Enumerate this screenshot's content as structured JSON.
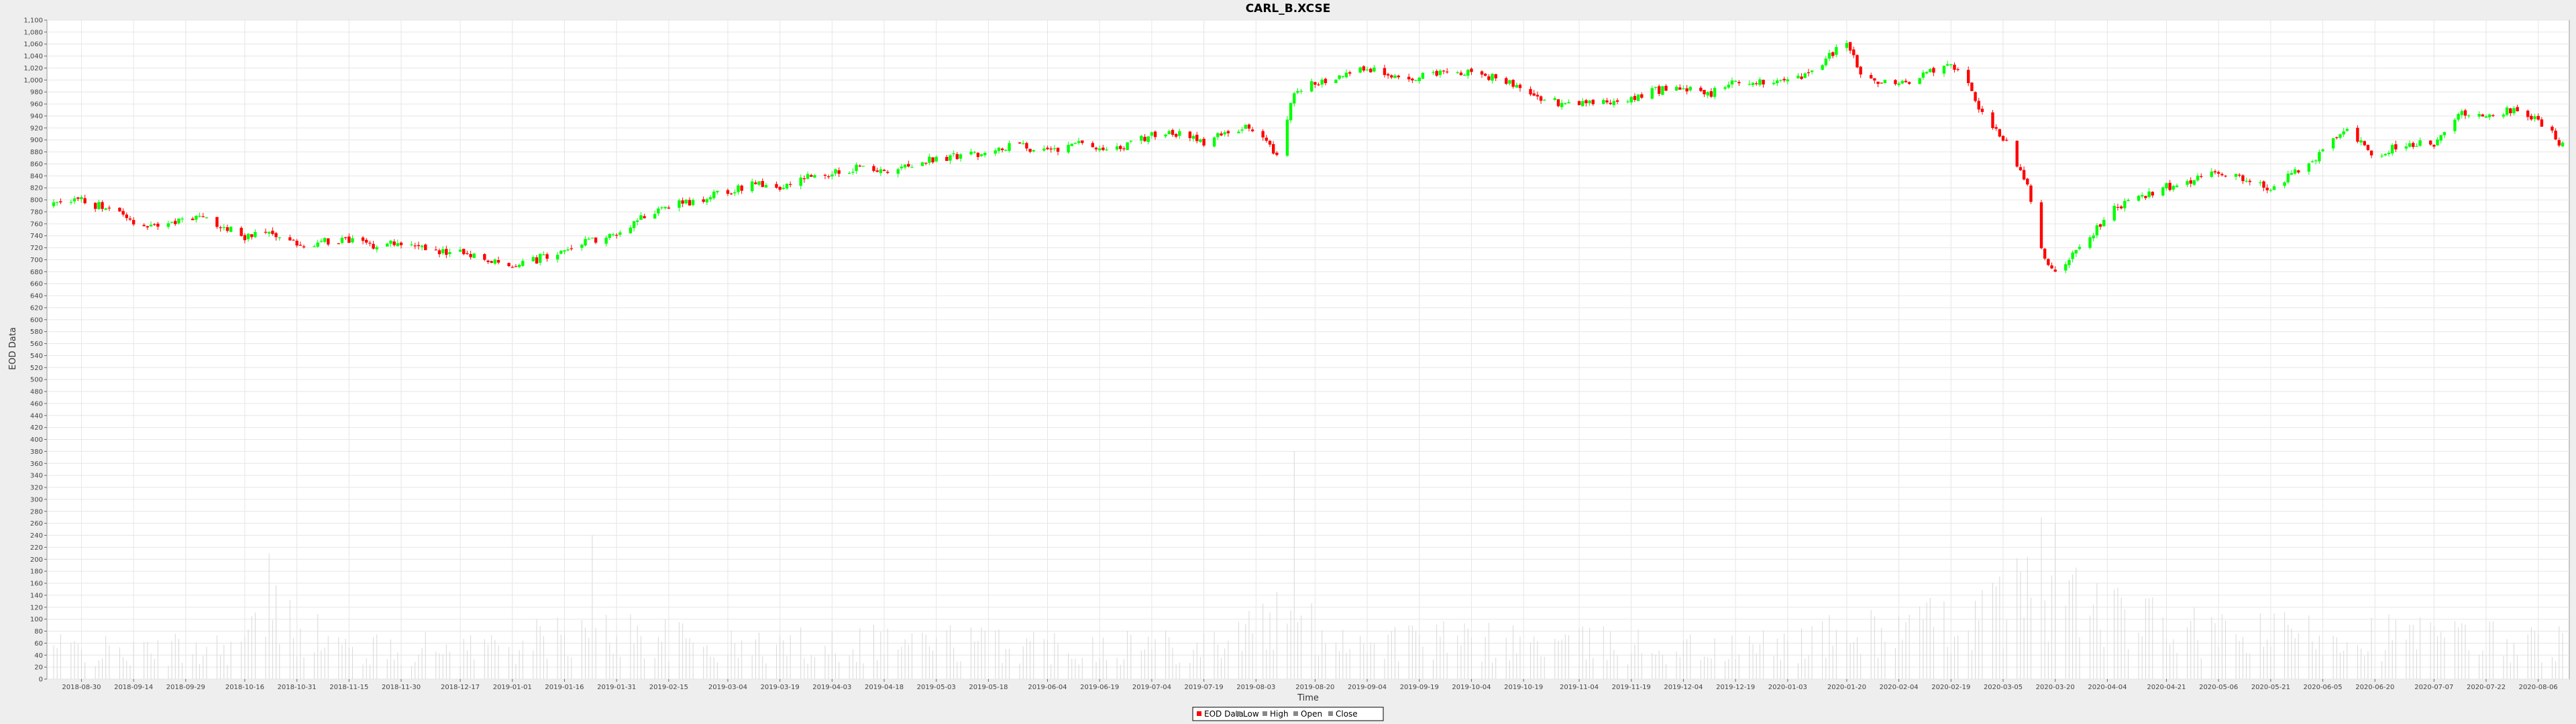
{
  "chart_data": {
    "type": "candlestick",
    "title": "CARL_B.XCSE",
    "xlabel": "Time",
    "ylabel": "EOD Data",
    "ylim": [
      0,
      1100
    ],
    "y_tick_step": 20,
    "grid": true,
    "legend_placement": "bottom-center",
    "x_tick_labels": [
      "2018-08-30",
      "2018-09-14",
      "2018-09-29",
      "2018-10-16",
      "2018-10-31",
      "2018-11-15",
      "2018-11-30",
      "2018-12-17",
      "2019-01-01",
      "2019-01-16",
      "2019-01-31",
      "2019-02-15",
      "2019-03-04",
      "2019-03-19",
      "2019-04-03",
      "2019-04-18",
      "2019-05-03",
      "2019-05-18",
      "2019-06-04",
      "2019-06-19",
      "2019-07-04",
      "2019-07-19",
      "2019-08-03",
      "2019-08-20",
      "2019-09-04",
      "2019-09-19",
      "2019-10-04",
      "2019-10-19",
      "2019-11-04",
      "2019-11-19",
      "2019-12-04",
      "2019-12-19",
      "2020-01-03",
      "2020-01-20",
      "2020-02-04",
      "2020-02-19",
      "2020-03-05",
      "2020-03-20",
      "2020-04-04",
      "2020-04-21",
      "2020-05-06",
      "2020-05-21",
      "2020-06-05",
      "2020-06-20",
      "2020-07-07",
      "2020-07-22",
      "2020-08-06"
    ],
    "legend": [
      "EOD Data",
      "Low",
      "High",
      "Open",
      "Close"
    ],
    "colors": {
      "up": "#00ff00",
      "down": "#ff0000",
      "volume": "#d8d8d8",
      "grid": "#e6e6e6",
      "plot_bg": "#ffffff"
    },
    "price_path": [
      [
        "2018-08-22",
        790
      ],
      [
        "2018-08-30",
        798
      ],
      [
        "2018-09-07",
        785
      ],
      [
        "2018-09-14",
        762
      ],
      [
        "2018-09-22",
        757
      ],
      [
        "2018-09-29",
        770
      ],
      [
        "2018-10-06",
        768
      ],
      [
        "2018-10-16",
        735
      ],
      [
        "2018-10-23",
        748
      ],
      [
        "2018-10-31",
        725
      ],
      [
        "2018-11-08",
        732
      ],
      [
        "2018-11-15",
        733
      ],
      [
        "2018-11-22",
        724
      ],
      [
        "2018-11-30",
        730
      ],
      [
        "2018-12-08",
        716
      ],
      [
        "2018-12-17",
        710
      ],
      [
        "2018-12-25",
        703
      ],
      [
        "2019-01-01",
        693
      ],
      [
        "2019-01-08",
        700
      ],
      [
        "2019-01-16",
        720
      ],
      [
        "2019-01-24",
        733
      ],
      [
        "2019-01-31",
        745
      ],
      [
        "2019-02-08",
        775
      ],
      [
        "2019-02-15",
        790
      ],
      [
        "2019-02-24",
        800
      ],
      [
        "2019-03-04",
        815
      ],
      [
        "2019-03-12",
        828
      ],
      [
        "2019-03-19",
        820
      ],
      [
        "2019-03-27",
        838
      ],
      [
        "2019-04-03",
        845
      ],
      [
        "2019-04-10",
        852
      ],
      [
        "2019-04-18",
        846
      ],
      [
        "2019-04-25",
        860
      ],
      [
        "2019-05-03",
        870
      ],
      [
        "2019-05-10",
        874
      ],
      [
        "2019-05-18",
        880
      ],
      [
        "2019-05-25",
        892
      ],
      [
        "2019-06-04",
        878
      ],
      [
        "2019-06-12",
        896
      ],
      [
        "2019-06-19",
        885
      ],
      [
        "2019-06-26",
        888
      ],
      [
        "2019-07-04",
        910
      ],
      [
        "2019-07-11",
        912
      ],
      [
        "2019-07-19",
        896
      ],
      [
        "2019-07-26",
        918
      ],
      [
        "2019-08-03",
        922
      ],
      [
        "2019-08-09",
        875
      ],
      [
        "2019-08-14",
        980
      ],
      [
        "2019-08-20",
        995
      ],
      [
        "2019-08-27",
        1008
      ],
      [
        "2019-09-04",
        1022
      ],
      [
        "2019-09-11",
        1002
      ],
      [
        "2019-09-19",
        1005
      ],
      [
        "2019-09-27",
        1018
      ],
      [
        "2019-10-04",
        1010
      ],
      [
        "2019-10-11",
        1003
      ],
      [
        "2019-10-19",
        988
      ],
      [
        "2019-10-26",
        965
      ],
      [
        "2019-11-04",
        957
      ],
      [
        "2019-11-12",
        964
      ],
      [
        "2019-11-19",
        972
      ],
      [
        "2019-11-26",
        982
      ],
      [
        "2019-12-04",
        988
      ],
      [
        "2019-12-11",
        975
      ],
      [
        "2019-12-19",
        998
      ],
      [
        "2019-12-27",
        995
      ],
      [
        "2020-01-03",
        1000
      ],
      [
        "2020-01-10",
        1010
      ],
      [
        "2020-01-17",
        1052
      ],
      [
        "2020-01-20",
        1060
      ],
      [
        "2020-01-25",
        1000
      ],
      [
        "2020-02-04",
        990
      ],
      [
        "2020-02-11",
        1010
      ],
      [
        "2020-02-19",
        1028
      ],
      [
        "2020-02-24",
        990
      ],
      [
        "2020-03-01",
        920
      ],
      [
        "2020-03-05",
        905
      ],
      [
        "2020-03-12",
        820
      ],
      [
        "2020-03-16",
        720
      ],
      [
        "2020-03-20",
        675
      ],
      [
        "2020-03-27",
        718
      ],
      [
        "2020-04-04",
        775
      ],
      [
        "2020-04-10",
        800
      ],
      [
        "2020-04-21",
        822
      ],
      [
        "2020-04-28",
        830
      ],
      [
        "2020-05-06",
        848
      ],
      [
        "2020-05-13",
        838
      ],
      [
        "2020-05-21",
        820
      ],
      [
        "2020-05-28",
        845
      ],
      [
        "2020-06-05",
        880
      ],
      [
        "2020-06-12",
        920
      ],
      [
        "2020-06-20",
        875
      ],
      [
        "2020-06-27",
        892
      ],
      [
        "2020-07-07",
        893
      ],
      [
        "2020-07-14",
        942
      ],
      [
        "2020-07-22",
        945
      ],
      [
        "2020-07-29",
        950
      ],
      [
        "2020-08-06",
        935
      ],
      [
        "2020-08-13",
        890
      ]
    ],
    "volume_path": [
      [
        "2018-08-22",
        60
      ],
      [
        "2018-09-14",
        50
      ],
      [
        "2018-10-16",
        70
      ],
      [
        "2018-10-23",
        130
      ],
      [
        "2018-11-15",
        55
      ],
      [
        "2018-12-17",
        60
      ],
      [
        "2019-01-31",
        90
      ],
      [
        "2019-03-04",
        60
      ],
      [
        "2019-04-18",
        75
      ],
      [
        "2019-06-04",
        65
      ],
      [
        "2019-07-19",
        70
      ],
      [
        "2019-08-09",
        110
      ],
      [
        "2019-09-04",
        75
      ],
      [
        "2019-10-19",
        70
      ],
      [
        "2019-11-19",
        65
      ],
      [
        "2019-12-19",
        55
      ],
      [
        "2020-01-20",
        85
      ],
      [
        "2020-02-24",
        110
      ],
      [
        "2020-03-12",
        165
      ],
      [
        "2020-03-20",
        175
      ],
      [
        "2020-04-04",
        120
      ],
      [
        "2020-05-06",
        80
      ],
      [
        "2020-06-05",
        90
      ],
      [
        "2020-07-07",
        80
      ],
      [
        "2020-08-13",
        70
      ]
    ],
    "volume_spikes": [
      [
        "2018-10-23",
        210
      ],
      [
        "2019-01-24",
        240
      ],
      [
        "2019-08-14",
        380
      ],
      [
        "2020-03-16",
        270
      ],
      [
        "2020-03-20",
        260
      ],
      [
        "2020-04-04",
        175
      ]
    ],
    "volume_range": [
      0,
      260
    ]
  }
}
